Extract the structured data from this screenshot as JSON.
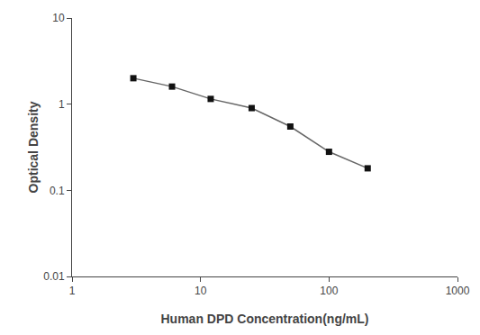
{
  "chart_data": {
    "type": "line",
    "x": [
      3,
      6,
      12,
      25,
      50,
      100,
      200
    ],
    "values": [
      2.0,
      1.6,
      1.15,
      0.9,
      0.55,
      0.28,
      0.18
    ],
    "xlabel": "Human DPD Concentration(ng/mL)",
    "ylabel": "Optical Density",
    "xlim": [
      1,
      1000
    ],
    "ylim": [
      0.01,
      10
    ],
    "xticks": [
      1,
      10,
      100,
      1000
    ],
    "yticks": [
      0.01,
      0.1,
      1,
      10
    ],
    "log": true,
    "grid": false,
    "color": "#666666",
    "colors": [
      "#111111",
      "#111111",
      "#111111",
      "#111111",
      "#111111",
      "#111111",
      "#111111"
    ],
    "marker": "square"
  }
}
